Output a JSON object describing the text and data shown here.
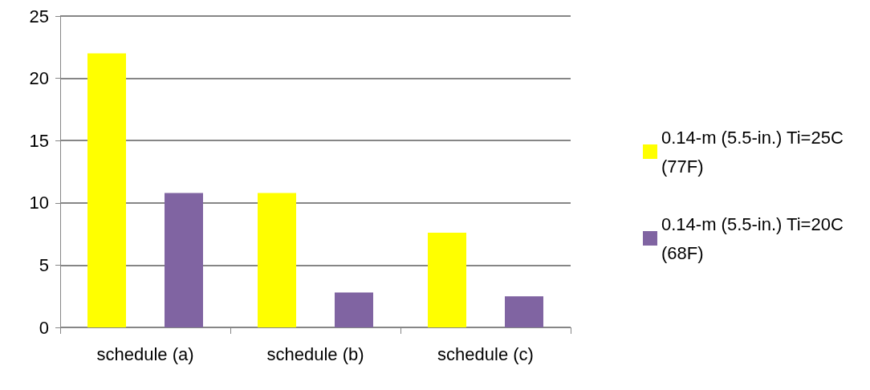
{
  "chart_data": {
    "type": "bar",
    "categories": [
      "schedule (a)",
      "schedule (b)",
      "schedule (c)"
    ],
    "series": [
      {
        "name": "0.14-m (5.5-in.) Ti=25C (77F)",
        "color": "#ffff00",
        "values": [
          22,
          10.8,
          7.6
        ]
      },
      {
        "name": "0.14-m (5.5-in.) Ti=20C (68F)",
        "color": "#8064a2",
        "values": [
          10.8,
          2.8,
          2.5
        ]
      }
    ],
    "ylim": [
      0,
      25
    ],
    "yticks": [
      0,
      5,
      10,
      15,
      20,
      25
    ],
    "grid": "y",
    "legend": "right"
  }
}
